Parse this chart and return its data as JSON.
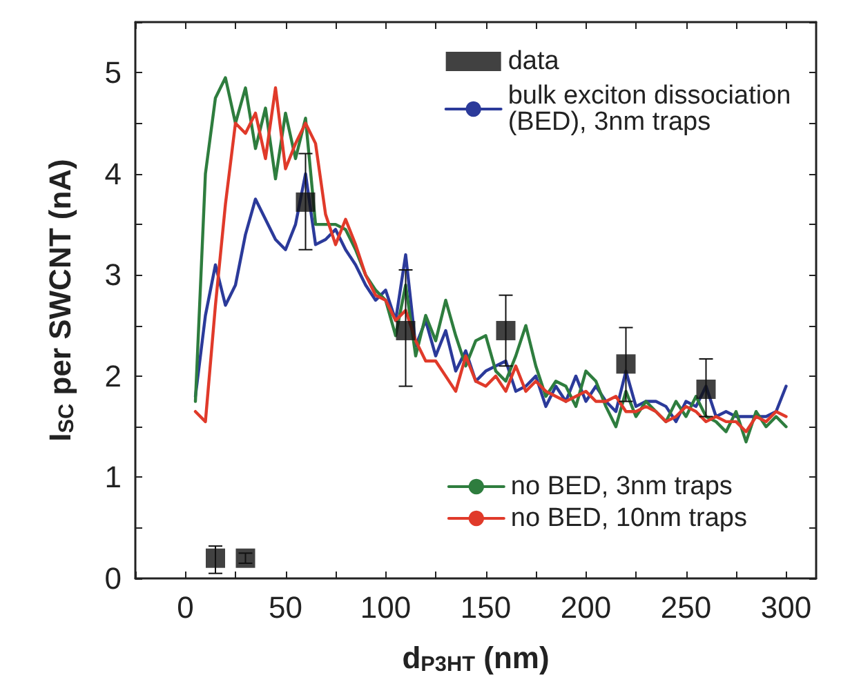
{
  "chart_data": {
    "type": "line",
    "xlabel": "d$_{P3HT}$ (nm)",
    "ylabel": "I$_{SC}$ per SWCNT (nA)",
    "x": [
      5,
      10,
      15,
      20,
      25,
      30,
      35,
      40,
      45,
      50,
      55,
      60,
      65,
      70,
      75,
      80,
      85,
      90,
      95,
      100,
      105,
      110,
      115,
      120,
      125,
      130,
      135,
      140,
      145,
      150,
      155,
      160,
      165,
      170,
      175,
      180,
      185,
      190,
      195,
      200,
      205,
      210,
      215,
      220,
      225,
      230,
      235,
      240,
      245,
      250,
      255,
      260,
      265,
      270,
      275,
      280,
      285,
      290,
      295,
      300
    ],
    "xlim": [
      -25,
      315
    ],
    "xticks": [
      0,
      50,
      100,
      150,
      200,
      250,
      300
    ],
    "ylim": [
      0,
      5.5
    ],
    "yticks": [
      0,
      1,
      2,
      3,
      4,
      5
    ],
    "grid": false,
    "legend": "top right",
    "line_style": "solid",
    "series": [
      {
        "name": "data",
        "type": "scatter",
        "marker": "square",
        "color": "#111111",
        "x": [
          15,
          30,
          60,
          110,
          160,
          220,
          260
        ],
        "values": [
          0.2,
          0.2,
          3.72,
          2.45,
          2.45,
          2.12,
          1.87
        ],
        "errors": [
          [
            0.05,
            0.32
          ],
          [
            0.15,
            0.25
          ],
          [
            3.25,
            4.2
          ],
          [
            1.9,
            3.05
          ],
          [
            2.1,
            2.8
          ],
          [
            1.75,
            2.48
          ],
          [
            1.6,
            2.17
          ]
        ]
      },
      {
        "name": "bulk exciton dissociation (BED), 3nm traps",
        "color": "#2b3a9a",
        "values": [
          1.8,
          2.6,
          3.1,
          2.7,
          2.9,
          3.4,
          3.75,
          3.55,
          3.35,
          3.25,
          3.5,
          4.0,
          3.3,
          3.35,
          3.45,
          3.25,
          3.1,
          2.9,
          2.75,
          2.85,
          2.55,
          3.2,
          2.3,
          2.55,
          2.2,
          2.45,
          2.05,
          2.25,
          1.95,
          2.05,
          2.1,
          2.15,
          1.85,
          1.9,
          2.0,
          1.7,
          1.9,
          1.75,
          2.0,
          1.75,
          1.9,
          1.75,
          1.65,
          2.05,
          1.7,
          1.75,
          1.75,
          1.7,
          1.55,
          1.75,
          1.7,
          1.9,
          1.6,
          1.65,
          1.6,
          1.6,
          1.6,
          1.6,
          1.65,
          1.9
        ]
      },
      {
        "name": "no BED, 3nm traps",
        "color": "#2e7d3e",
        "values": [
          1.75,
          4.0,
          4.75,
          4.95,
          4.5,
          4.85,
          4.25,
          4.65,
          3.95,
          4.6,
          4.15,
          4.55,
          3.5,
          3.5,
          3.5,
          3.45,
          3.25,
          3.0,
          2.85,
          2.75,
          2.4,
          2.9,
          2.2,
          2.6,
          2.35,
          2.75,
          2.4,
          2.1,
          2.35,
          2.4,
          2.05,
          1.95,
          2.2,
          2.5,
          2.1,
          1.8,
          1.95,
          1.9,
          1.7,
          2.05,
          1.95,
          1.7,
          1.5,
          1.85,
          1.6,
          1.75,
          1.65,
          1.55,
          1.75,
          1.6,
          1.8,
          1.6,
          1.55,
          1.45,
          1.65,
          1.35,
          1.65,
          1.5,
          1.6,
          1.5
        ]
      },
      {
        "name": "no BED, 10nm traps",
        "color": "#e03a2a",
        "values": [
          1.65,
          1.55,
          2.7,
          3.7,
          4.5,
          4.4,
          4.6,
          4.15,
          4.85,
          4.05,
          4.3,
          4.5,
          4.3,
          3.6,
          3.3,
          3.55,
          3.3,
          3.0,
          2.8,
          2.75,
          2.55,
          2.65,
          2.35,
          2.15,
          2.15,
          2.0,
          1.85,
          2.2,
          1.95,
          1.9,
          2.0,
          1.85,
          2.1,
          1.85,
          1.95,
          1.85,
          1.8,
          1.75,
          1.8,
          1.85,
          1.75,
          1.75,
          1.8,
          1.65,
          1.65,
          1.7,
          1.65,
          1.55,
          1.6,
          1.7,
          1.65,
          1.55,
          1.6,
          1.55,
          1.55,
          1.45,
          1.6,
          1.55,
          1.65,
          1.6
        ]
      }
    ]
  }
}
